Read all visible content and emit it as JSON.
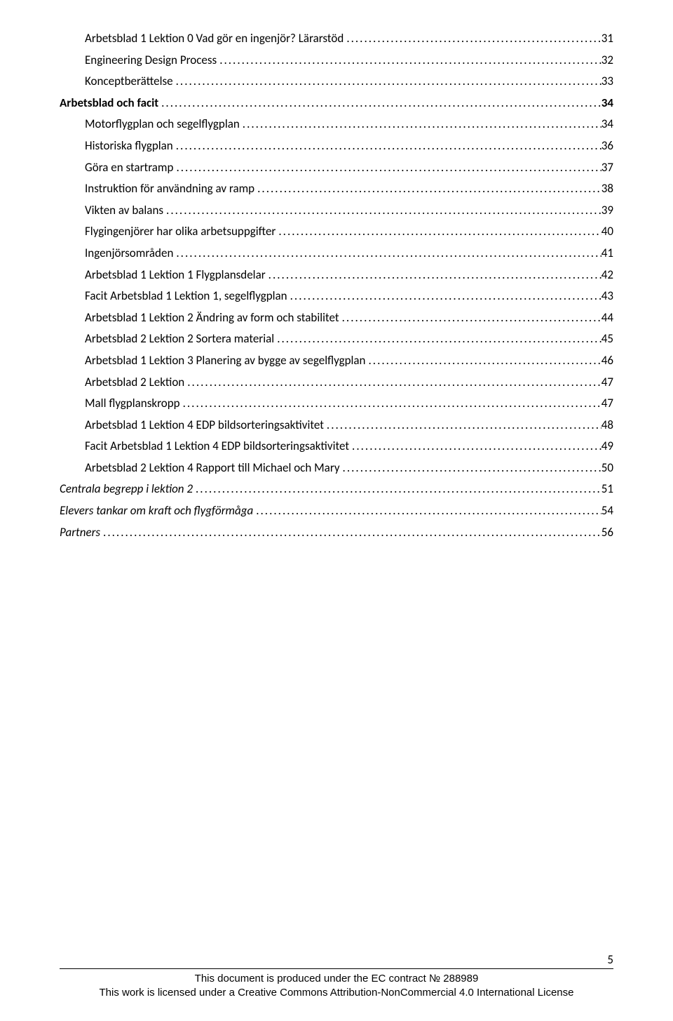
{
  "toc": {
    "entries": [
      {
        "title": "Arbetsblad 1 Lektion 0 Vad gör en ingenjör? Lärarstöd",
        "page": "31",
        "level": "l2",
        "link": true
      },
      {
        "title": "Engineering Design Process",
        "page": "32",
        "level": "l2",
        "link": true
      },
      {
        "title": "Konceptberättelse",
        "page": "33",
        "level": "l2",
        "link": true
      },
      {
        "title": "Arbetsblad och facit",
        "page": "34",
        "level": "l1-strong",
        "link": false
      },
      {
        "title": "Motorflygplan och segelflygplan",
        "page": "34",
        "level": "l2",
        "link": true
      },
      {
        "title": "Historiska flygplan",
        "page": "36",
        "level": "l2",
        "link": true
      },
      {
        "title": "Göra en startramp",
        "page": "37",
        "level": "l2",
        "link": true
      },
      {
        "title": "Instruktion för användning av ramp",
        "page": "38",
        "level": "l2",
        "link": true
      },
      {
        "title": "Vikten av balans",
        "page": "39",
        "level": "l2",
        "link": true
      },
      {
        "title": "Flygingenjörer har olika arbetsuppgifter",
        "page": "40",
        "level": "l2",
        "link": true
      },
      {
        "title": "Ingenjörsområden",
        "page": "41",
        "level": "l2",
        "link": true
      },
      {
        "title": "Arbetsblad 1 Lektion 1 Flygplansdelar",
        "page": "42",
        "level": "l2",
        "link": true
      },
      {
        "title": "Facit Arbetsblad 1 Lektion 1, segelflygplan",
        "page": "43",
        "level": "l2",
        "link": true
      },
      {
        "title": "Arbetsblad 1 Lektion 2 Ändring av form och stabilitet",
        "page": "44",
        "level": "l2",
        "link": true
      },
      {
        "title": "Arbetsblad 2 Lektion 2 Sortera material",
        "page": "45",
        "level": "l2",
        "link": true
      },
      {
        "title": "Arbetsblad 1 Lektion 3 Planering av bygge av segelflygplan",
        "page": "46",
        "level": "l2",
        "link": true
      },
      {
        "title": "Arbetsblad 2 Lektion",
        "page": "47",
        "level": "l2",
        "link": true
      },
      {
        "title": "Mall flygplanskropp",
        "page": "47",
        "level": "l2",
        "link": true
      },
      {
        "title": "Arbetsblad 1 Lektion 4 EDP bildsorteringsaktivitet",
        "page": "48",
        "level": "l2",
        "link": true
      },
      {
        "title": "Facit Arbetsblad 1 Lektion 4 EDP bildsorteringsaktivitet",
        "page": "49",
        "level": "l2",
        "link": true
      },
      {
        "title": "Arbetsblad 2 Lektion 4 Rapport till Michael och Mary",
        "page": "50",
        "level": "l2",
        "link": true
      },
      {
        "title": "Centrala begrepp i lektion 2",
        "page": "51",
        "level": "l1",
        "link": true
      },
      {
        "title": "Elevers tankar om kraft och flygförmåga",
        "page": "54",
        "level": "l1",
        "link": true
      },
      {
        "title": "Partners",
        "page": "56",
        "level": "l1",
        "link": true
      }
    ]
  },
  "footer": {
    "page_number": "5",
    "line1": "This document is produced under the EC contract № 288989",
    "line2": "This work is licensed under a Creative Commons Attribution-NonCommercial 4.0 International License"
  },
  "colors": {
    "text": "#000000",
    "background": "#ffffff"
  }
}
